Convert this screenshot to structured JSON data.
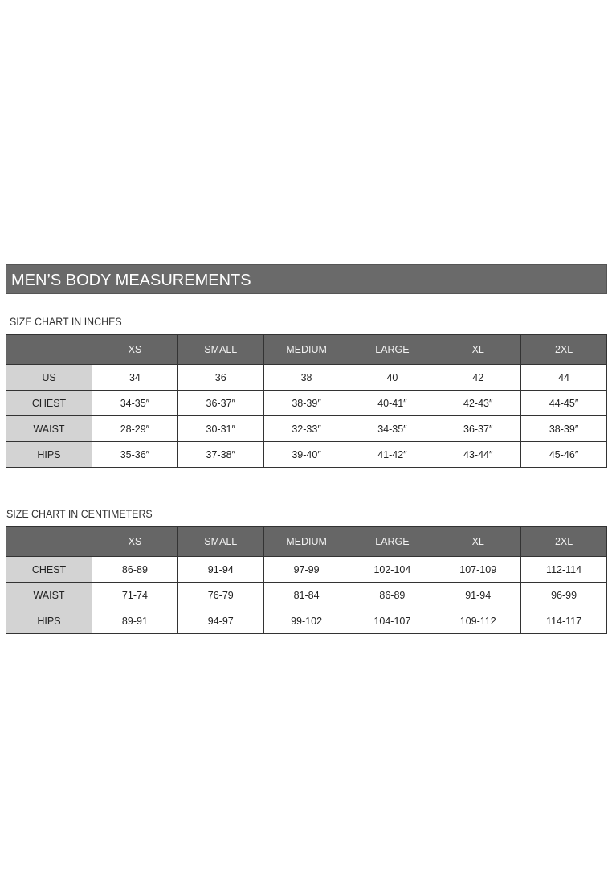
{
  "title": "MEN’S BODY MEASUREMENTS",
  "inches": {
    "label": "SIZE CHART IN INCHES",
    "headers": [
      "",
      "XS",
      "SMALL",
      "MEDIUM",
      "LARGE",
      "XL",
      "2XL"
    ],
    "rows": [
      [
        "US",
        "34",
        "36",
        "38",
        "40",
        "42",
        "44"
      ],
      [
        "CHEST",
        "34-35″",
        "36-37″",
        "38-39″",
        "40-41″",
        "42-43″",
        "44-45″"
      ],
      [
        "WAIST",
        "28-29″",
        "30-31″",
        "32-33″",
        "34-35″",
        "36-37″",
        "38-39″"
      ],
      [
        "HIPS",
        "35-36″",
        "37-38″",
        "39-40″",
        "41-42″",
        "43-44″",
        "45-46″"
      ]
    ]
  },
  "cm": {
    "label": "SIZE CHART IN CENTIMETERS",
    "headers": [
      "",
      "XS",
      "SMALL",
      "MEDIUM",
      "LARGE",
      "XL",
      "2XL"
    ],
    "rows": [
      [
        "CHEST",
        "86-89",
        "91-94",
        "97-99",
        "102-104",
        "107-109",
        "112-114"
      ],
      [
        "WAIST",
        "71-74",
        "76-79",
        "81-84",
        "86-89",
        "91-94",
        "96-99"
      ],
      [
        "HIPS",
        "89-91",
        "94-97",
        "99-102",
        "104-107",
        "109-112",
        "114-117"
      ]
    ]
  }
}
